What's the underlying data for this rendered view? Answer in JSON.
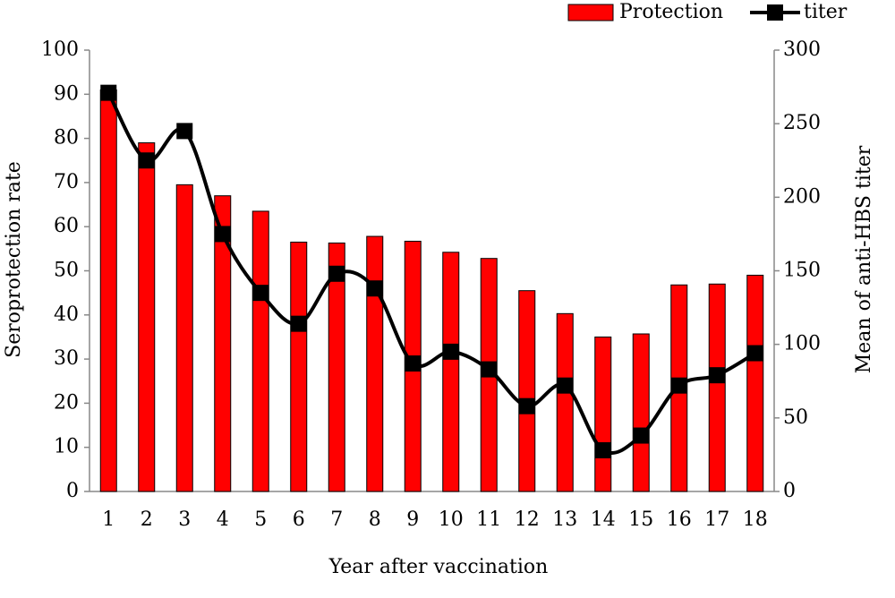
{
  "chart_data": {
    "type": "bar-line",
    "x_label": "Year after vaccination",
    "y_label": "Seroprotection rate",
    "y2_label": "Mean of anti-HBS titer",
    "categories": [
      "1",
      "2",
      "3",
      "4",
      "5",
      "6",
      "7",
      "8",
      "9",
      "10",
      "11",
      "12",
      "13",
      "14",
      "15",
      "16",
      "17",
      "18"
    ],
    "series": [
      {
        "name": "Protection",
        "color": "#ff0000",
        "type": "bar",
        "values": [
          91,
          79,
          69.5,
          67,
          63.5,
          56.5,
          56.3,
          57.8,
          56.7,
          54.2,
          52.8,
          45.5,
          40.3,
          35,
          35.7,
          46.8,
          47,
          49
        ]
      },
      {
        "name": "titer",
        "color": "#000000",
        "type": "line",
        "axis": "y2",
        "values": [
          271,
          225,
          245,
          175,
          135,
          114,
          148,
          138,
          87,
          95,
          83,
          58,
          72,
          28,
          38,
          72,
          79,
          94
        ]
      }
    ],
    "ylim": [
      0,
      100
    ],
    "yticks": [
      0,
      10,
      20,
      30,
      40,
      50,
      60,
      70,
      80,
      90,
      100
    ],
    "y2lim": [
      0,
      300
    ],
    "y2ticks": [
      0,
      50,
      100,
      150,
      200,
      250,
      300
    ],
    "legend": "top-right"
  }
}
